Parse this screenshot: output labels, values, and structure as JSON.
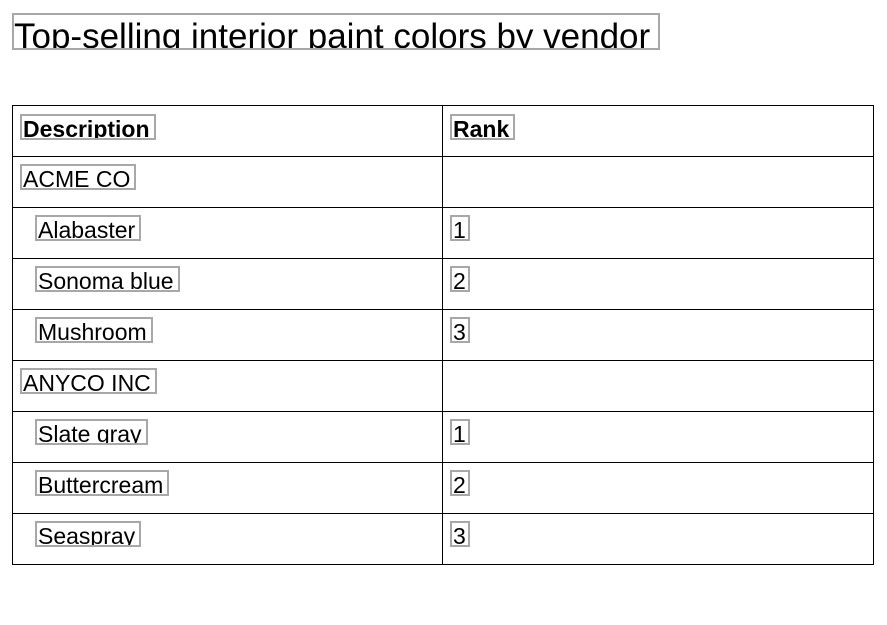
{
  "title": "Top-selling interior paint colors by vendor",
  "table": {
    "headers": {
      "description": "Description",
      "rank": "Rank"
    },
    "rows": [
      {
        "description": "ACME CO",
        "rank": "",
        "type": "group"
      },
      {
        "description": "Alabaster",
        "rank": "1",
        "type": "item"
      },
      {
        "description": "Sonoma blue",
        "rank": "2",
        "type": "item"
      },
      {
        "description": "Mushroom",
        "rank": "3",
        "type": "item"
      },
      {
        "description": "ANYCO INC",
        "rank": "",
        "type": "group"
      },
      {
        "description": "Slate gray",
        "rank": "1",
        "type": "item"
      },
      {
        "description": "Buttercream",
        "rank": "2",
        "type": "item"
      },
      {
        "description": "Seaspray",
        "rank": "3",
        "type": "item"
      }
    ]
  }
}
